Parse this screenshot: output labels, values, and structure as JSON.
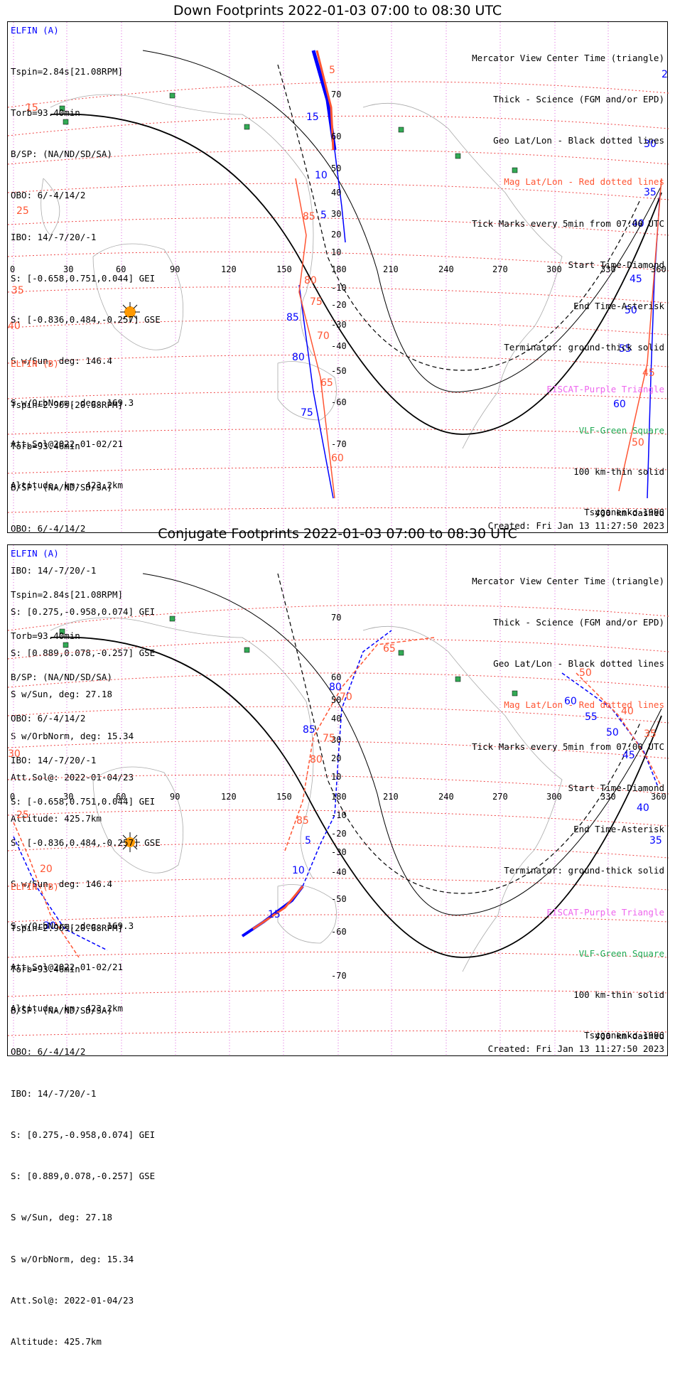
{
  "panels": [
    {
      "title": "Down Footprints 2022-01-03 07:00 to 08:30 UTC",
      "sat_a": {
        "name": "ELFIN (A)",
        "lines": [
          "Tspin=2.84s[21.08RPM]",
          "Torb=93.40min",
          "B/SP: (NA/ND/SD/SA)",
          "OBO: 6/-4/14/2",
          "IBO: 14/-7/20/-1",
          "S: [-0.658,0.751,0.044] GEI",
          "S: [-0.836,0.484,-0.257] GSE",
          "S w/Sun, deg: 146.4",
          "S w/OrbNorm, deg: 169.3",
          "Att.Sol@2022-01-02/21",
          "Altitude, km: 423.2km"
        ]
      },
      "sat_b": {
        "name": "ELFIN (B)",
        "lines": [
          "Tspin=2.90s[20.68RPM]",
          "Torb=93.46min",
          "B/SP: (NA/ND/SD/SA)",
          "OBO: 6/-4/14/2",
          "IBO: 14/-7/20/-1",
          "S: [0.275,-0.958,0.074] GEI",
          "S: [0.889,0.078,-0.257] GSE",
          "S w/Sun, deg: 27.18",
          "S w/OrbNorm, deg: 15.34",
          "Att.Sol@: 2022-01-04/23",
          "Altitude: 425.7km"
        ]
      },
      "legend": [
        {
          "text": "Mercator View Center Time (triangle)",
          "color": "black"
        },
        {
          "text": "Thick - Science (FGM and/or EPD)",
          "color": "black"
        },
        {
          "text": "Geo Lat/Lon - Black dotted lines",
          "color": "black"
        },
        {
          "text": "Mag Lat/Lon - Red dotted lines",
          "color": "red"
        },
        {
          "text": "Tick Marks every 5min from 07:00 UTC",
          "color": "black"
        },
        {
          "text": "Start Time-Diamond",
          "color": "black"
        },
        {
          "text": "End Time-Asterisk",
          "color": "black"
        },
        {
          "text": "Terminator: ground-thick solid",
          "color": "black"
        },
        {
          "text": "EISCAT-Purple Triangle",
          "color": "pink"
        },
        {
          "text": "VLF-Green Square",
          "color": "green"
        },
        {
          "text": "100 km-thin solid",
          "color": "black"
        },
        {
          "text": "400 km-dashed",
          "color": "black"
        }
      ],
      "model": "Tsyganenko-1996",
      "created": "Created: Fri Jan 13 11:27:50 2023"
    },
    {
      "title": "Conjugate Footprints 2022-01-03 07:00 to 08:30 UTC",
      "sat_a": {
        "name": "ELFIN (A)",
        "lines": [
          "Tspin=2.84s[21.08RPM]",
          "Torb=93.40min",
          "B/SP: (NA/ND/SD/SA)",
          "OBO: 6/-4/14/2",
          "IBO: 14/-7/20/-1",
          "S: [-0.658,0.751,0.044] GEI",
          "S: [-0.836,0.484,-0.257] GSE",
          "S w/Sun, deg: 146.4",
          "S w/OrbNorm, deg: 169.3",
          "Att.Sol@2022-01-02/21",
          "Altitude, km: 423.2km"
        ]
      },
      "sat_b": {
        "name": "ELFIN (B)",
        "lines": [
          "Tspin=2.90s[20.68RPM]",
          "Torb=93.46min",
          "B/SP: (NA/ND/SD/SA)",
          "OBO: 6/-4/14/2",
          "IBO: 14/-7/20/-1",
          "S: [0.275,-0.958,0.074] GEI",
          "S: [0.889,0.078,-0.257] GSE",
          "S w/Sun, deg: 27.18",
          "S w/OrbNorm, deg: 15.34",
          "Att.Sol@: 2022-01-04/23",
          "Altitude: 425.7km"
        ]
      },
      "legend": [
        {
          "text": "Mercator View Center Time (triangle)",
          "color": "black"
        },
        {
          "text": "Thick - Science (FGM and/or EPD)",
          "color": "black"
        },
        {
          "text": "Geo Lat/Lon - Black dotted lines",
          "color": "black"
        },
        {
          "text": "Mag Lat/Lon - Red dotted lines",
          "color": "red"
        },
        {
          "text": "Tick Marks every 5min from 07:00 UTC",
          "color": "black"
        },
        {
          "text": "Start Time-Diamond",
          "color": "black"
        },
        {
          "text": "End Time-Asterisk",
          "color": "black"
        },
        {
          "text": "Terminator: ground-thick solid",
          "color": "black"
        },
        {
          "text": "EISCAT-Purple Triangle",
          "color": "pink"
        },
        {
          "text": "VLF-Green Square",
          "color": "green"
        },
        {
          "text": "100 km-thin solid",
          "color": "black"
        },
        {
          "text": "400 km-dashed",
          "color": "black"
        }
      ],
      "model": "Tsyganenko-1996",
      "created": "Created: Fri Jan 13 11:27:50 2023"
    }
  ],
  "lon_ticks": [
    "0",
    "30",
    "60",
    "90",
    "120",
    "150",
    "180",
    "210",
    "240",
    "270",
    "300",
    "330",
    "360"
  ],
  "lat_ticks": [
    "70",
    "60",
    "50",
    "40",
    "30",
    "20",
    "10",
    "-10",
    "-20",
    "-30",
    "-40",
    "-50",
    "-60",
    "-70"
  ],
  "colors": {
    "sat_a": "#0000ff",
    "sat_b": "#ff5533",
    "vlf": "#33aa55",
    "eiscat": "#cc55cc",
    "sun": "#ff9900"
  }
}
